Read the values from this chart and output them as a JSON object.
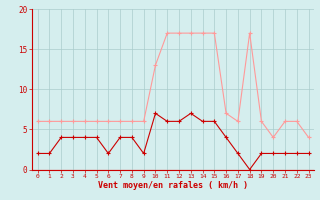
{
  "x": [
    0,
    1,
    2,
    3,
    4,
    5,
    6,
    7,
    8,
    9,
    10,
    11,
    12,
    13,
    14,
    15,
    16,
    17,
    18,
    19,
    20,
    21,
    22,
    23
  ],
  "wind_avg": [
    2,
    2,
    4,
    4,
    4,
    4,
    2,
    4,
    4,
    2,
    7,
    6,
    6,
    7,
    6,
    6,
    4,
    2,
    0,
    2,
    2,
    2,
    2,
    2
  ],
  "wind_gust": [
    6,
    6,
    6,
    6,
    6,
    6,
    6,
    6,
    6,
    6,
    13,
    17,
    17,
    17,
    17,
    17,
    7,
    6,
    17,
    6,
    4,
    6,
    6,
    4
  ],
  "color_avg": "#cc0000",
  "color_gust": "#ff9999",
  "bg_color": "#d5eeee",
  "grid_color": "#aacccc",
  "xlabel": "Vent moyen/en rafales ( km/h )",
  "ylim": [
    0,
    20
  ],
  "yticks": [
    0,
    5,
    10,
    15,
    20
  ],
  "xlabel_color": "#cc0000",
  "tick_color": "#cc0000",
  "spine_color": "#cc0000",
  "marker_size": 3,
  "linewidth": 0.8
}
